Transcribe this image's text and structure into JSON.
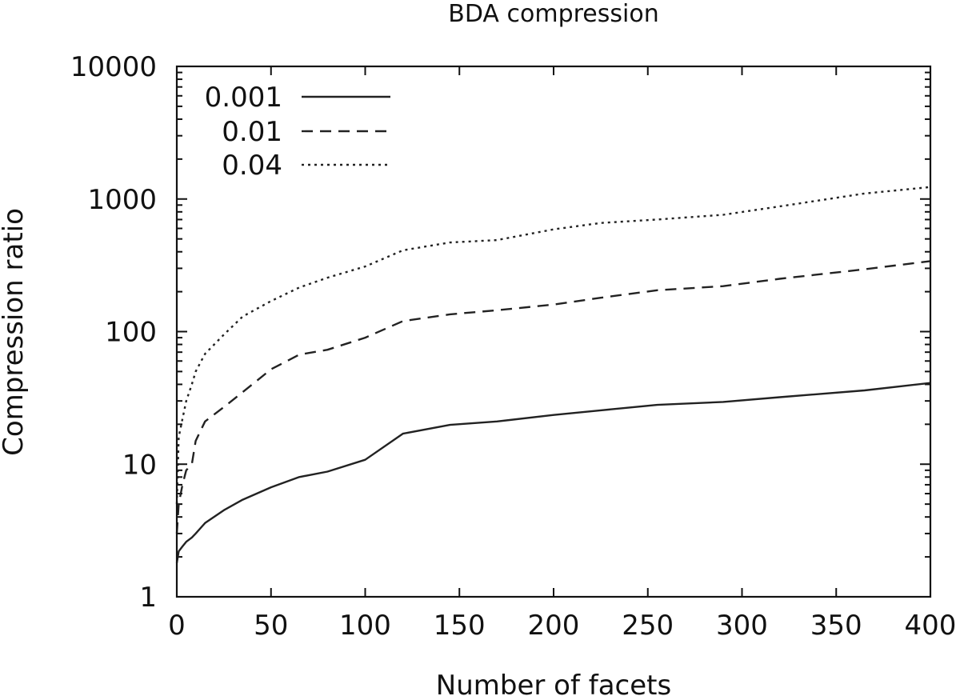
{
  "chart_data": {
    "type": "line",
    "title": "BDA compression",
    "xlabel": "Number of facets",
    "ylabel": "Compression ratio",
    "xlim": [
      0,
      400
    ],
    "ylim": [
      1,
      10000
    ],
    "yscale": "log",
    "xticks": [
      0,
      50,
      100,
      150,
      200,
      250,
      300,
      350,
      400
    ],
    "xtick_labels": [
      "0",
      "50",
      "100",
      "150",
      "200",
      "250",
      "300",
      "350",
      "400"
    ],
    "yticks": [
      1,
      10,
      100,
      1000,
      10000
    ],
    "ytick_labels": [
      "1",
      "10",
      "100",
      "1000",
      "10000"
    ],
    "grid": false,
    "legend_position": "top-left",
    "series": [
      {
        "name": "0.001",
        "style": "solid",
        "x": [
          0,
          1,
          3,
          5,
          8,
          10,
          15,
          25,
          35,
          50,
          65,
          80,
          100,
          120,
          145,
          170,
          200,
          225,
          255,
          290,
          320,
          365,
          400
        ],
        "y": [
          1.8,
          2.2,
          2.4,
          2.6,
          2.8,
          3.0,
          3.6,
          4.5,
          5.4,
          6.7,
          8.0,
          8.8,
          10.8,
          17,
          19.8,
          21,
          23.5,
          25.5,
          28,
          29.5,
          32,
          36,
          41
        ]
      },
      {
        "name": "0.01",
        "style": "dashed",
        "x": [
          0,
          1,
          3,
          5,
          8,
          10,
          15,
          25,
          35,
          50,
          65,
          80,
          100,
          120,
          145,
          170,
          200,
          225,
          255,
          290,
          320,
          365,
          400
        ],
        "y": [
          3,
          5,
          7,
          9,
          10,
          15,
          21,
          27,
          35,
          52,
          67,
          73,
          90,
          120,
          135,
          145,
          160,
          180,
          205,
          220,
          250,
          295,
          340
        ]
      },
      {
        "name": "0.04",
        "style": "dotted",
        "x": [
          0,
          1,
          3,
          5,
          8,
          10,
          15,
          25,
          35,
          50,
          65,
          80,
          100,
          120,
          145,
          170,
          200,
          225,
          255,
          290,
          320,
          365,
          400
        ],
        "y": [
          5,
          16,
          22,
          30,
          40,
          50,
          68,
          95,
          130,
          170,
          215,
          255,
          310,
          410,
          470,
          490,
          590,
          660,
          700,
          760,
          880,
          1100,
          1230
        ]
      }
    ]
  }
}
